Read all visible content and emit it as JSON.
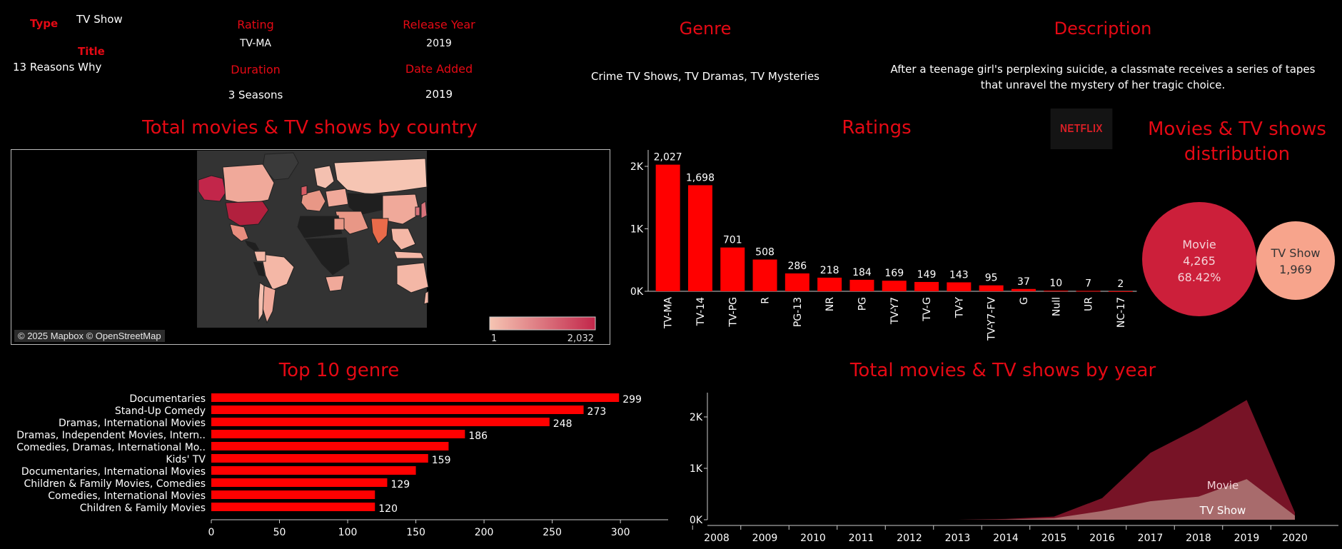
{
  "details": {
    "type_label": "Type",
    "type_value": "TV Show",
    "title_label": "Title",
    "title_value": "13 Reasons Why",
    "rating_label": "Rating",
    "rating_value": "TV-MA",
    "duration_label": "Duration",
    "duration_value": "3 Seasons",
    "release_year_label": "Release Year",
    "release_year_value": "2019",
    "date_added_label": "Date Added",
    "date_added_value": "2019",
    "genre_label": "Genre",
    "genre_value": "Crime TV Shows, TV Dramas, TV Mysteries",
    "description_label": "Description",
    "description_value": "After a teenage girl's perplexing suicide, a classmate receives a series of tapes that unravel the mystery of her tragic choice."
  },
  "logo_text": "NETFLIX",
  "map": {
    "title": "Total movies & TV shows by country",
    "attribution": "© 2025 Mapbox © OpenStreetMap",
    "legend_min": "1",
    "legend_max": "2,032",
    "colors": {
      "low": "#f6c5b3",
      "high": "#c2264a",
      "ocean": "#333333",
      "land_none": "#1f1f1f"
    }
  },
  "colors": {
    "accent": "#e50914",
    "bar": "#ff0000",
    "movie": "#cc1f3a",
    "tvshow": "#f7a48c",
    "area_movie": "#7d1428",
    "area_tv": "#b88a84"
  },
  "chart_data": [
    {
      "type": "bar",
      "title": "Ratings",
      "categories": [
        "TV-MA",
        "TV-14",
        "TV-PG",
        "R",
        "PG-13",
        "NR",
        "PG",
        "TV-Y7",
        "TV-G",
        "TV-Y",
        "TV-Y7-FV",
        "G",
        "Null",
        "UR",
        "NC-17"
      ],
      "values": [
        2027,
        1698,
        701,
        508,
        286,
        218,
        184,
        169,
        149,
        143,
        95,
        37,
        10,
        7,
        2
      ],
      "value_labels": [
        "2,027",
        "1,698",
        "701",
        "508",
        "286",
        "218",
        "184",
        "169",
        "149",
        "143",
        "95",
        "37",
        "10",
        "7",
        "2"
      ],
      "yticks": [
        0,
        1000,
        2000
      ],
      "ytick_labels": [
        "0K",
        "1K",
        "2K"
      ],
      "ylim": [
        0,
        2400
      ]
    },
    {
      "type": "bar",
      "orientation": "horizontal",
      "title": "Top 10 genre",
      "categories": [
        "Documentaries",
        "Stand-Up Comedy",
        "Dramas, International Movies",
        "Dramas, Independent Movies, Intern..",
        "Comedies, Dramas, International Mo..",
        "Kids' TV",
        "Documentaries, International Movies",
        "Children & Family Movies, Comedies",
        "Comedies, International Movies",
        "Children & Family Movies"
      ],
      "values": [
        299,
        273,
        248,
        186,
        174,
        159,
        150,
        129,
        120,
        120
      ],
      "value_labels": [
        "299",
        "273",
        "248",
        "186",
        "",
        "159",
        "",
        "129",
        "",
        "120"
      ],
      "xticks": [
        0,
        50,
        100,
        150,
        200,
        250,
        300
      ],
      "xlim": [
        0,
        335
      ]
    },
    {
      "type": "pie",
      "title": "Movies & TV shows distribution",
      "series": [
        {
          "name": "Movie",
          "value": 4265,
          "value_label": "4,265",
          "percent_label": "68.42%"
        },
        {
          "name": "TV Show",
          "value": 1969,
          "value_label": "1,969"
        }
      ]
    },
    {
      "type": "area",
      "title": "Total movies & TV shows by year",
      "x": [
        "2008",
        "2009",
        "2010",
        "2011",
        "2012",
        "2013",
        "2014",
        "2015",
        "2016",
        "2017",
        "2018",
        "2019",
        "2020"
      ],
      "series": [
        {
          "name": "Movie",
          "values": [
            0,
            0,
            0,
            0,
            0,
            0,
            15,
            60,
            420,
            1300,
            1780,
            2330,
            140
          ]
        },
        {
          "name": "TV Show",
          "values": [
            0,
            0,
            0,
            0,
            0,
            0,
            5,
            30,
            170,
            360,
            450,
            790,
            80
          ]
        }
      ],
      "yticks": [
        0,
        1000,
        2000
      ],
      "ytick_labels": [
        "0K",
        "1K",
        "2K"
      ],
      "ylim": [
        0,
        2500
      ]
    }
  ]
}
